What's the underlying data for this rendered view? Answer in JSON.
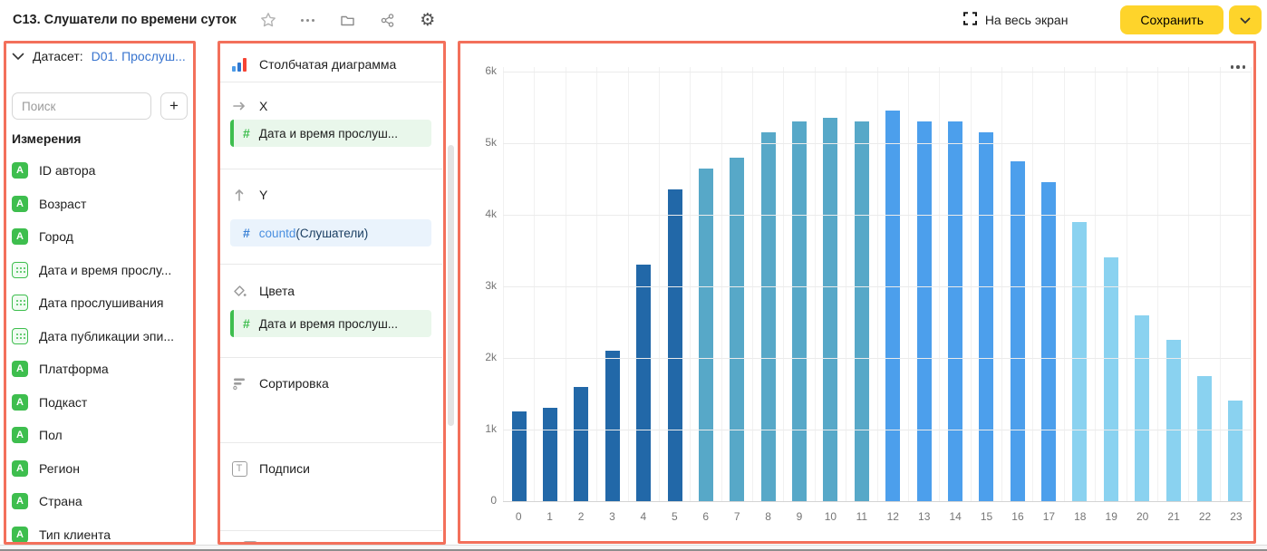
{
  "topbar": {
    "title": "C13. Слушатели по времени суток",
    "fullscreen_label": "На весь экран",
    "save_label": "Сохранить"
  },
  "left_panel": {
    "dataset_label": "Датасет:",
    "dataset_name": "D01. Прослуш...",
    "search_placeholder": "Поиск",
    "add_field_label": "+",
    "dimensions_title": "Измерения",
    "fields": [
      {
        "name": "ID автора",
        "type": "string"
      },
      {
        "name": "Возраст",
        "type": "string"
      },
      {
        "name": "Город",
        "type": "string"
      },
      {
        "name": "Дата и время прослу...",
        "type": "date"
      },
      {
        "name": "Дата прослушивания",
        "type": "date"
      },
      {
        "name": "Дата публикации эпи...",
        "type": "date"
      },
      {
        "name": "Платформа",
        "type": "string"
      },
      {
        "name": "Подкаст",
        "type": "string"
      },
      {
        "name": "Пол",
        "type": "string"
      },
      {
        "name": "Регион",
        "type": "string"
      },
      {
        "name": "Страна",
        "type": "string"
      },
      {
        "name": "Тип клиента",
        "type": "string"
      }
    ]
  },
  "middle_panel": {
    "chart_type_label": "Столбчатая диаграмма",
    "x_section": {
      "label": "X",
      "field": "Дата и время прослуш..."
    },
    "y_section": {
      "label": "Y",
      "formula": "countd",
      "formula_arg": "(Слушатели)"
    },
    "colors_section": {
      "label": "Цвета",
      "field": "Дата и время прослуш..."
    },
    "sort_section_label": "Сортировка",
    "labels_section_label": "Подписи"
  },
  "chart_data": {
    "type": "bar",
    "title": "",
    "xlabel": "",
    "ylabel": "",
    "categories": [
      "0",
      "1",
      "2",
      "3",
      "4",
      "5",
      "6",
      "7",
      "8",
      "9",
      "10",
      "11",
      "12",
      "13",
      "14",
      "15",
      "16",
      "17",
      "18",
      "19",
      "20",
      "21",
      "22",
      "23"
    ],
    "values": [
      1250,
      1300,
      1600,
      2100,
      3300,
      4350,
      4650,
      4800,
      5150,
      5300,
      5350,
      5300,
      5450,
      5300,
      5300,
      5150,
      4750,
      4450,
      3900,
      3400,
      2600,
      2250,
      1750,
      1400
    ],
    "yticks": [
      "0",
      "1k",
      "2k",
      "3k",
      "4k",
      "5k",
      "6k"
    ],
    "ylim": [
      0,
      6000
    ],
    "grid": true,
    "legend_position": "none",
    "bar_colors": [
      "#2268A8",
      "#2268A8",
      "#2268A8",
      "#2268A8",
      "#2268A8",
      "#2268A8",
      "#57A8C8",
      "#57A8C8",
      "#57A8C8",
      "#57A8C8",
      "#57A8C8",
      "#57A8C8",
      "#4C9FEC",
      "#4C9FEC",
      "#4C9FEC",
      "#4C9FEC",
      "#4C9FEC",
      "#4C9FEC",
      "#8AD2F0",
      "#8AD2F0",
      "#8AD2F0",
      "#8AD2F0",
      "#8AD2F0",
      "#8AD2F0"
    ]
  },
  "ui_colors": {
    "accent_yellow": "#FED42B",
    "link_blue": "#3874CF",
    "dimension_green": "#3EBE4E",
    "measure_blue": "#3B82D6",
    "annotation_red": "#F3705B"
  }
}
